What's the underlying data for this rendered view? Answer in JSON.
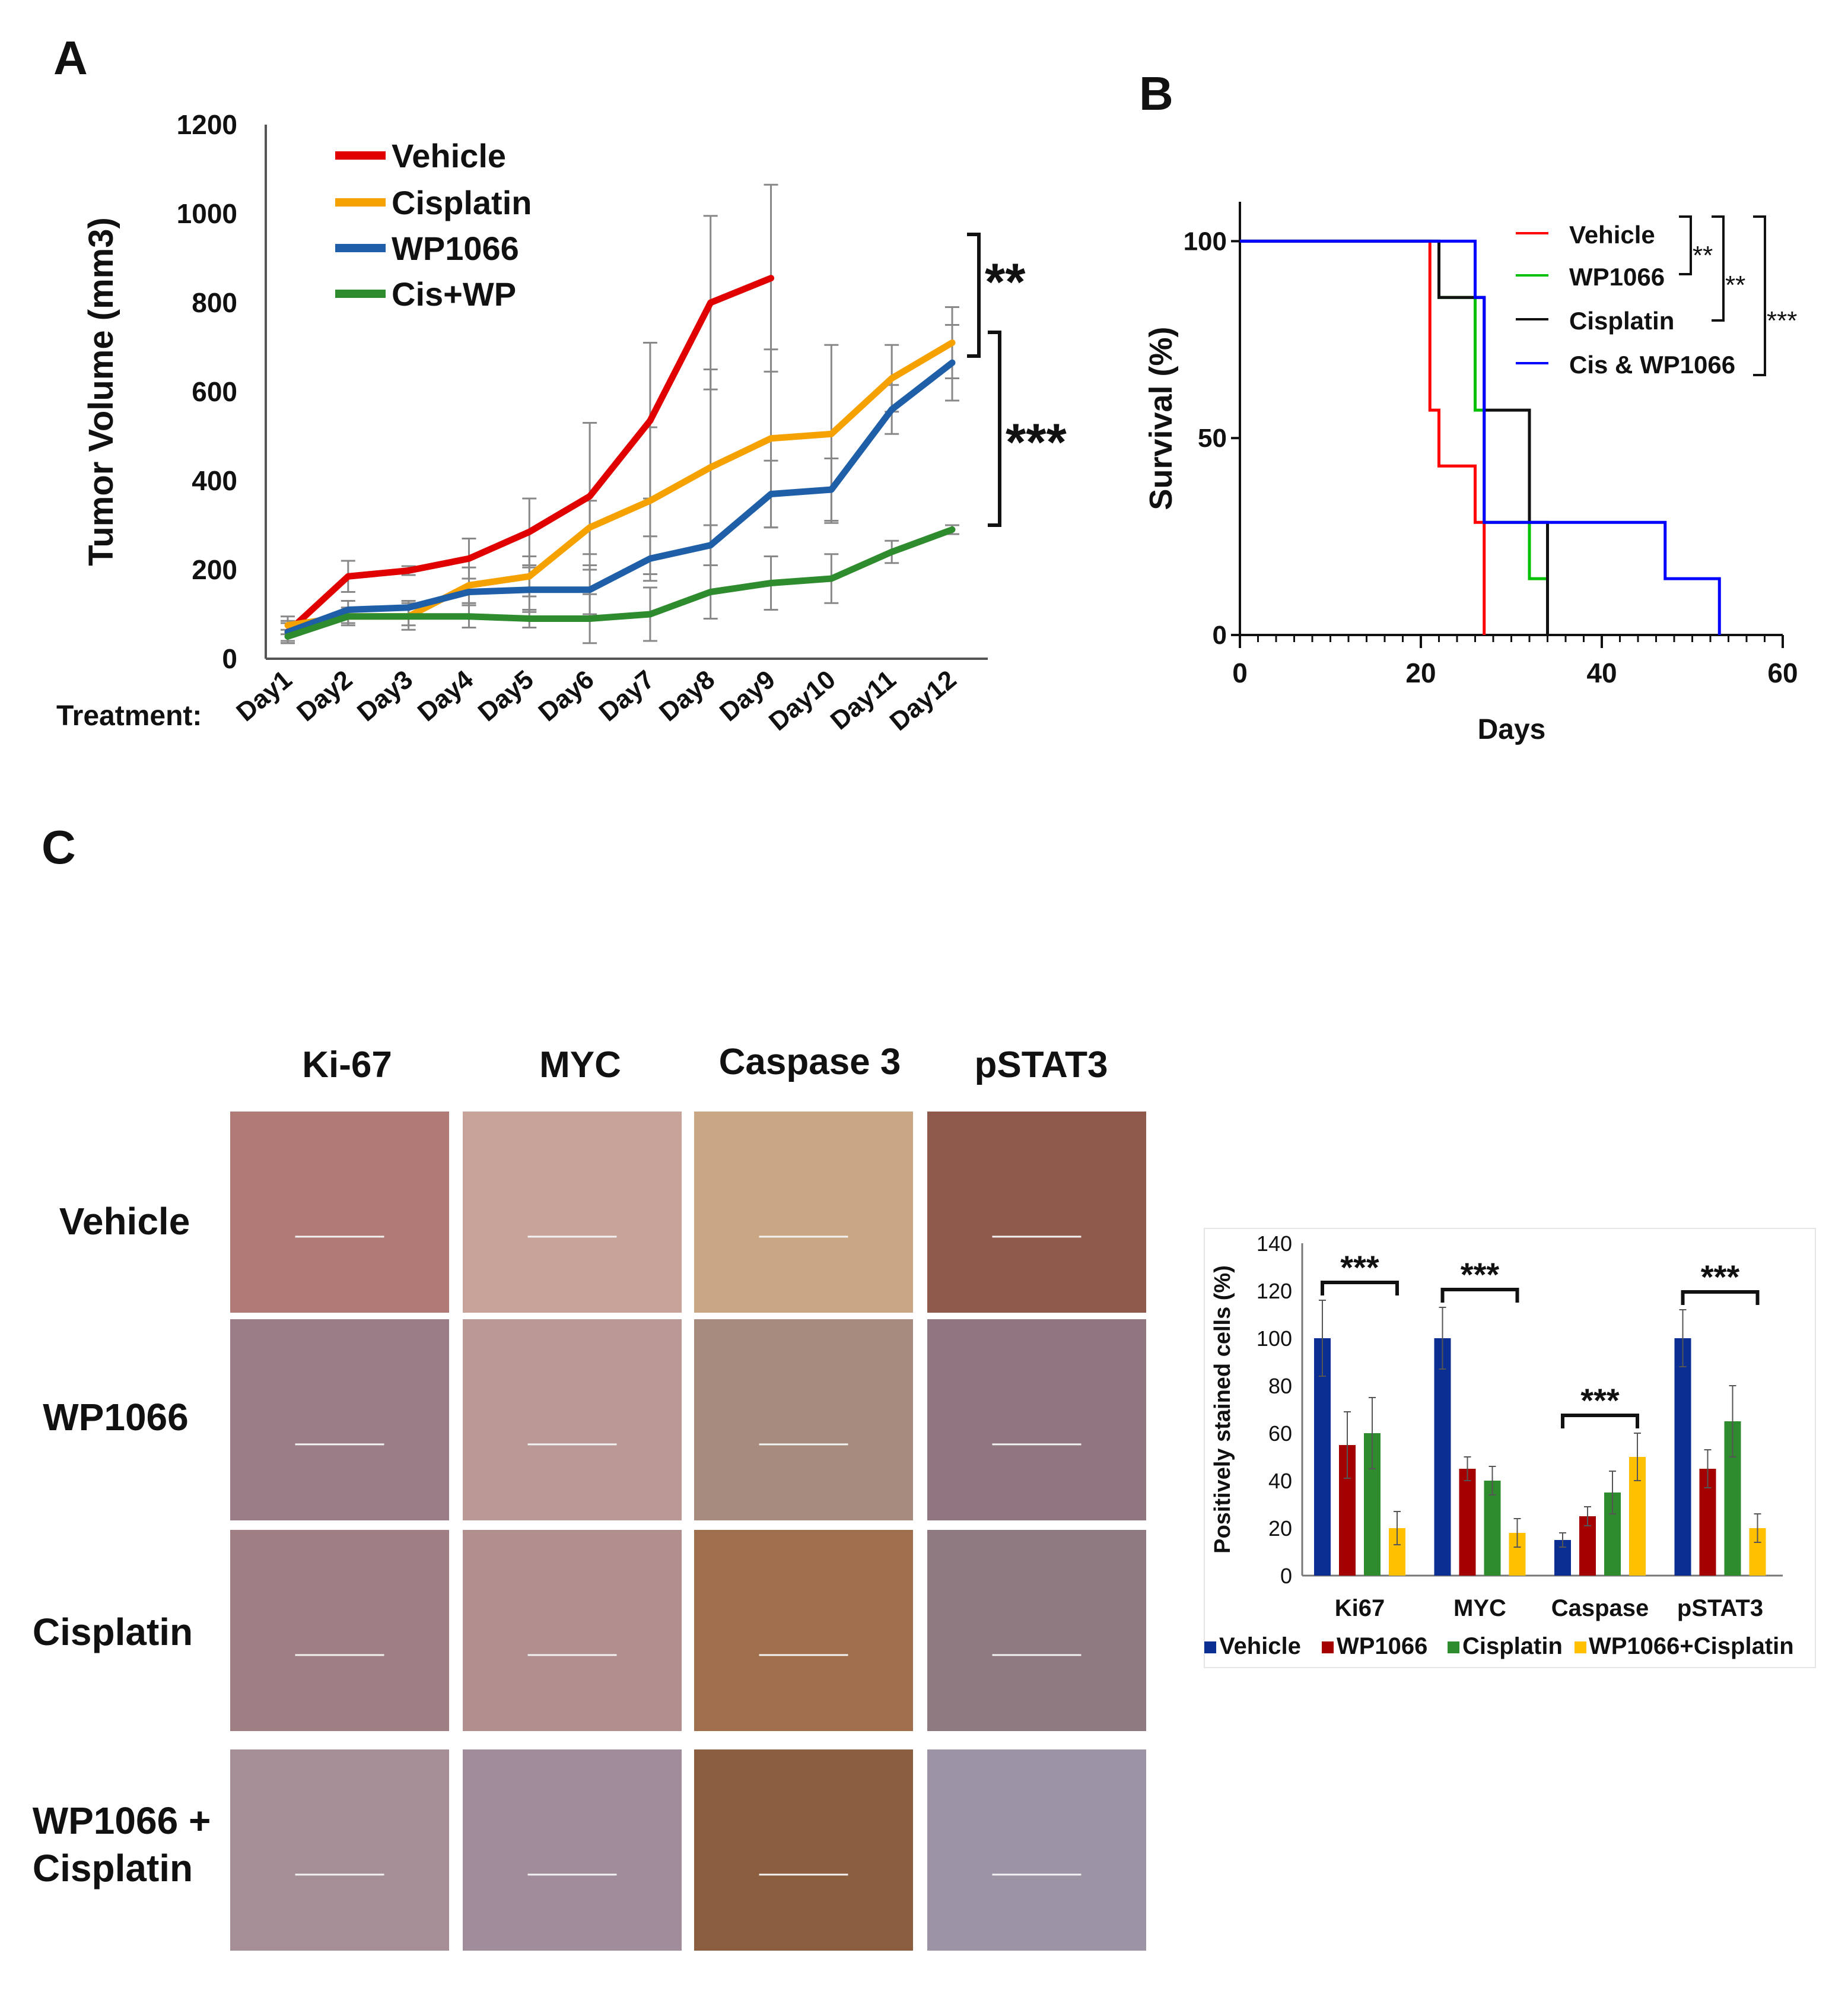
{
  "panels": {
    "a": "A",
    "b": "B",
    "c": "C"
  },
  "colors": {
    "vehicle_a": "#e00000",
    "cisplatin_a": "#f5a100",
    "wp1066_a": "#1f5fa8",
    "cisWP_a": "#2e8b2e",
    "vehicle_b": "#ff0000",
    "wp1066_b": "#00c000",
    "cisplatin_b": "#111111",
    "cisWP_b": "#0000ff",
    "vehicle_c": "#0a2e91",
    "wp1066_c": "#a50000",
    "cisplatin_c": "#2e8b2e",
    "combo_c": "#ffc000"
  },
  "chart_data": [
    {
      "id": "A",
      "type": "line",
      "title": "",
      "xlabel": "Treatment:",
      "ylabel": "Tumor Volume (mm3)",
      "ylim": [
        0,
        1200
      ],
      "yticks": [
        0,
        200,
        400,
        600,
        800,
        1000,
        1200
      ],
      "categories": [
        "Day1",
        "Day2",
        "Day3",
        "Day4",
        "Day5",
        "Day6",
        "Day7",
        "Day8",
        "Day9",
        "Day10",
        "Day11",
        "Day12"
      ],
      "series": [
        {
          "name": "Vehicle",
          "color": "#e00000",
          "values": [
            60,
            185,
            198,
            225,
            285,
            365,
            535,
            800,
            855,
            null,
            null,
            null
          ],
          "errors": [
            25,
            35,
            10,
            45,
            75,
            165,
            175,
            195,
            210,
            null,
            null,
            null
          ]
        },
        {
          "name": "Cisplatin",
          "color": "#f5a100",
          "values": [
            75,
            95,
            95,
            165,
            185,
            295,
            355,
            430,
            495,
            505,
            630,
            710
          ],
          "errors": [
            20,
            20,
            30,
            40,
            45,
            60,
            165,
            220,
            200,
            200,
            75,
            80
          ]
        },
        {
          "name": "WP1066",
          "color": "#1f5fa8",
          "values": [
            60,
            110,
            115,
            150,
            155,
            155,
            225,
            255,
            370,
            380,
            560,
            665
          ],
          "errors": [
            20,
            20,
            15,
            30,
            50,
            55,
            50,
            45,
            75,
            70,
            55,
            85
          ]
        },
        {
          "name": "Cis+WP",
          "color": "#2e8b2e",
          "values": [
            50,
            95,
            95,
            95,
            90,
            90,
            100,
            150,
            170,
            180,
            240,
            290
          ],
          "errors": [
            15,
            15,
            20,
            25,
            20,
            55,
            60,
            60,
            60,
            55,
            25,
            10
          ]
        }
      ],
      "significance": [
        {
          "label": "**",
          "between": [
            "Cisplatin",
            "WP1066"
          ]
        },
        {
          "label": "***",
          "between": [
            "WP1066",
            "Cis+WP"
          ]
        }
      ]
    },
    {
      "id": "B",
      "type": "line",
      "subtype": "kaplan-meier",
      "title": "",
      "xlabel": "Days",
      "ylabel": "Survival (%)",
      "xlim": [
        0,
        60
      ],
      "ylim": [
        0,
        110
      ],
      "xticks": [
        0,
        20,
        40,
        60
      ],
      "yticks": [
        0,
        50,
        100
      ],
      "series": [
        {
          "name": "Vehicle",
          "color": "#ff0000",
          "steps": [
            [
              0,
              100
            ],
            [
              21,
              100
            ],
            [
              21,
              57.1
            ],
            [
              22,
              57.1
            ],
            [
              22,
              42.9
            ],
            [
              26,
              42.9
            ],
            [
              26,
              28.6
            ],
            [
              27,
              28.6
            ],
            [
              27,
              0
            ]
          ]
        },
        {
          "name": "WP1066",
          "color": "#00c000",
          "steps": [
            [
              0,
              100
            ],
            [
              22,
              100
            ],
            [
              22,
              85.7
            ],
            [
              26,
              85.7
            ],
            [
              26,
              57.1
            ],
            [
              27,
              57.1
            ],
            [
              27,
              28.6
            ],
            [
              32,
              28.6
            ],
            [
              32,
              14.3
            ],
            [
              34,
              14.3
            ],
            [
              34,
              0
            ]
          ]
        },
        {
          "name": "Cisplatin",
          "color": "#111111",
          "steps": [
            [
              0,
              100
            ],
            [
              22,
              100
            ],
            [
              22,
              85.7
            ],
            [
              27,
              85.7
            ],
            [
              27,
              57.1
            ],
            [
              32,
              57.1
            ],
            [
              32,
              28.6
            ],
            [
              34,
              28.6
            ],
            [
              34,
              0
            ]
          ]
        },
        {
          "name": "Cis & WP1066",
          "color": "#0000ff",
          "steps": [
            [
              0,
              100
            ],
            [
              26,
              100
            ],
            [
              26,
              85.7
            ],
            [
              27,
              85.7
            ],
            [
              27,
              28.6
            ],
            [
              47,
              28.6
            ],
            [
              47,
              14.3
            ],
            [
              53,
              14.3
            ],
            [
              53,
              0
            ]
          ]
        }
      ],
      "significance": [
        {
          "label": "**",
          "between": [
            "Vehicle",
            "WP1066"
          ]
        },
        {
          "label": "**",
          "between": [
            "Vehicle",
            "Cisplatin"
          ]
        },
        {
          "label": "***",
          "between": [
            "Vehicle",
            "Cis & WP1066"
          ]
        }
      ]
    },
    {
      "id": "C",
      "type": "bar",
      "title": "",
      "xlabel": "",
      "ylabel": "Positively stained cells (%)",
      "ylim": [
        0,
        140
      ],
      "yticks": [
        0,
        20,
        40,
        60,
        80,
        100,
        120,
        140
      ],
      "categories": [
        "Ki67",
        "MYC",
        "Caspase",
        "pSTAT3"
      ],
      "series": [
        {
          "name": "Vehicle",
          "color": "#0a2e91",
          "values": [
            100,
            100,
            15,
            100
          ],
          "errors": [
            16,
            13,
            3,
            12
          ]
        },
        {
          "name": "WP1066",
          "color": "#a50000",
          "values": [
            55,
            45,
            25,
            45
          ],
          "errors": [
            14,
            5,
            4,
            8
          ]
        },
        {
          "name": "Cisplatin",
          "color": "#2e8b2e",
          "values": [
            60,
            40,
            35,
            65
          ],
          "errors": [
            15,
            6,
            9,
            15
          ]
        },
        {
          "name": "WP1066+Cisplatin",
          "color": "#ffc000",
          "values": [
            20,
            18,
            50,
            20
          ],
          "errors": [
            7,
            6,
            10,
            6
          ]
        }
      ],
      "significance": [
        {
          "label": "***",
          "category": "Ki67"
        },
        {
          "label": "***",
          "category": "MYC"
        },
        {
          "label": "***",
          "category": "Caspase"
        },
        {
          "label": "***",
          "category": "pSTAT3"
        }
      ]
    }
  ],
  "ihc": {
    "columns": [
      "Ki-67",
      "MYC",
      "Caspase 3",
      "pSTAT3"
    ],
    "rows": [
      "Vehicle",
      "WP1066",
      "Cisplatin",
      "WP1066 +",
      "Cisplatin"
    ],
    "tile_colors": [
      [
        "#b07a76",
        "#c7a39a",
        "#c9a785",
        "#8f5a4c"
      ],
      [
        "#9a7d86",
        "#b99896",
        "#a68b7e",
        "#8f7680"
      ],
      [
        "#9f7f83",
        "#b08f8e",
        "#a0704e",
        "#8e7a80"
      ],
      [
        "#a58e95",
        "#a08c9a",
        "#8b5e40",
        "#9c93a4"
      ]
    ]
  }
}
